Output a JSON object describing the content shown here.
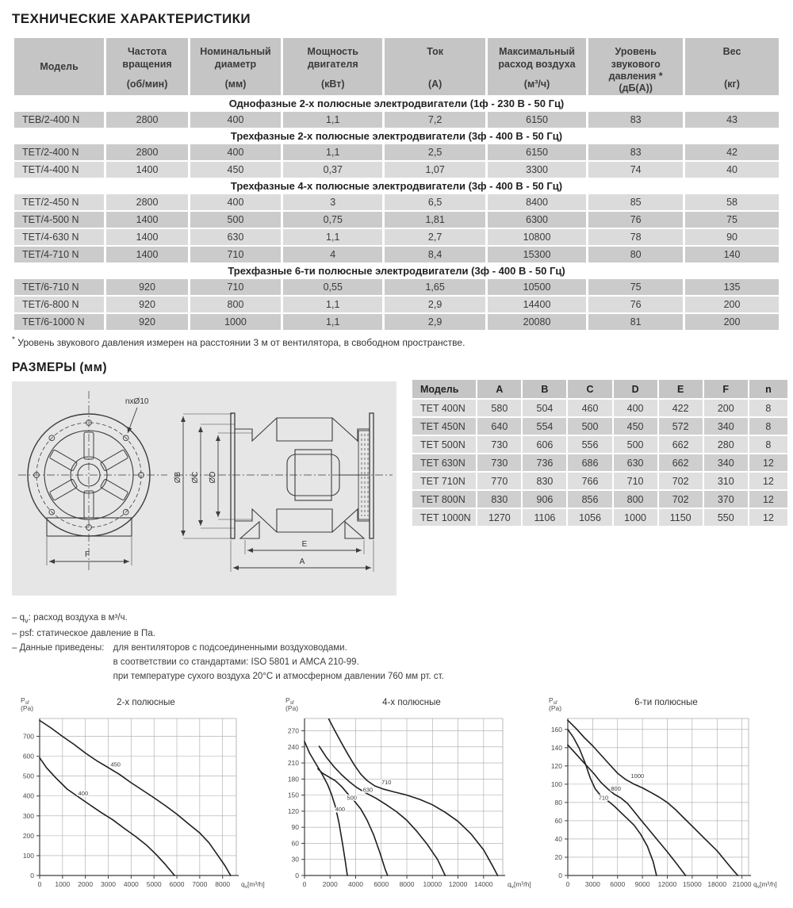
{
  "page_title": "ТЕХНИЧЕСКИЕ ХАРАКТЕРИСТИКИ",
  "colors": {
    "table_header": "#c5c5c5",
    "row_dark": "#cbcbcb",
    "row_light": "#dbdbdb",
    "section_row": "#ffffff",
    "drawing_panel": "#e6e6e6",
    "curve": "#1f1f1f",
    "grid": "#a8a8a8"
  },
  "spec_table": {
    "columns": [
      {
        "title": "Модель",
        "unit": ""
      },
      {
        "title": "Частота вращения",
        "unit": "(об/мин)"
      },
      {
        "title": "Номинальный диаметр",
        "unit": "(мм)"
      },
      {
        "title": "Мощность двигателя",
        "unit": "(кВт)"
      },
      {
        "title": "Ток",
        "unit": "(А)"
      },
      {
        "title": "Максимальный расход воздуха",
        "unit": "(м³/ч)"
      },
      {
        "title": "Уровень звукового давления *",
        "unit": "(дБ(А))"
      },
      {
        "title": "Вес",
        "unit": "(кг)"
      }
    ],
    "sections": [
      {
        "header": "Однофазные 2-х полюсные электродвигатели (1ф - 230 В - 50 Гц)",
        "rows": [
          [
            "TEB/2-400 N",
            "2800",
            "400",
            "1,1",
            "7,2",
            "6150",
            "83",
            "43"
          ]
        ]
      },
      {
        "header": "Трехфазные 2-х полюсные электродвигатели (3ф - 400 В - 50 Гц)",
        "rows": [
          [
            "TET/2-400 N",
            "2800",
            "400",
            "1,1",
            "2,5",
            "6150",
            "83",
            "42"
          ],
          [
            "TET/4-400 N",
            "1400",
            "450",
            "0,37",
            "1,07",
            "3300",
            "74",
            "40"
          ]
        ]
      },
      {
        "header": "Трехфазные 4-х полюсные электродвигатели (3ф - 400 В - 50 Гц)",
        "rows": [
          [
            "TET/2-450 N",
            "2800",
            "400",
            "3",
            "6,5",
            "8400",
            "85",
            "58"
          ],
          [
            "TET/4-500 N",
            "1400",
            "500",
            "0,75",
            "1,81",
            "6300",
            "76",
            "75"
          ],
          [
            "TET/4-630 N",
            "1400",
            "630",
            "1,1",
            "2,7",
            "10800",
            "78",
            "90"
          ],
          [
            "TET/4-710 N",
            "1400",
            "710",
            "4",
            "8,4",
            "15300",
            "80",
            "140"
          ]
        ]
      },
      {
        "header": "Трехфазные 6-ти полюсные электродвигатели (3ф - 400 В - 50 Гц)",
        "rows": [
          [
            "TET/6-710 N",
            "920",
            "710",
            "0,55",
            "1,65",
            "10500",
            "75",
            "135"
          ],
          [
            "TET/6-800 N",
            "920",
            "800",
            "1,1",
            "2,9",
            "14400",
            "76",
            "200"
          ],
          [
            "TET/6-1000 N",
            "920",
            "1000",
            "1,1",
            "2,9",
            "20080",
            "81",
            "200"
          ]
        ]
      }
    ],
    "footnote": "Уровень звукового давления измерен на расстоянии 3 м от вентилятора, в свободном пространстве.",
    "footnote_mark": "*"
  },
  "dimensions": {
    "title": "РАЗМЕРЫ (мм)",
    "drawing_labels": {
      "holes": "nxØ10",
      "B": "ØB",
      "C": "ØC",
      "D": "ØD",
      "E": "E",
      "A": "A",
      "F": "F"
    },
    "table": {
      "columns": [
        "Модель",
        "A",
        "B",
        "C",
        "D",
        "E",
        "F",
        "n"
      ],
      "rows": [
        [
          "TET 400N",
          "580",
          "504",
          "460",
          "400",
          "422",
          "200",
          "8"
        ],
        [
          "TET 450N",
          "640",
          "554",
          "500",
          "450",
          "572",
          "340",
          "8"
        ],
        [
          "TET 500N",
          "730",
          "606",
          "556",
          "500",
          "662",
          "280",
          "8"
        ],
        [
          "TET 630N",
          "730",
          "736",
          "686",
          "630",
          "662",
          "340",
          "12"
        ],
        [
          "TET 710N",
          "770",
          "830",
          "766",
          "710",
          "702",
          "310",
          "12"
        ],
        [
          "TET 800N",
          "830",
          "906",
          "856",
          "800",
          "702",
          "370",
          "12"
        ],
        [
          "TET 1000N",
          "1270",
          "1106",
          "1056",
          "1000",
          "1150",
          "550",
          "12"
        ]
      ]
    }
  },
  "notes": {
    "qv_pre": "– q",
    "qv_sub": "v",
    "qv_post": ": расход воздуха в м³/ч.",
    "psf_line": "– psf: статическое давление в Па.",
    "data_label": "– Данные приведены: ",
    "data_items": [
      "для вентиляторов с подсоединенными воздуховодами.",
      "в соответствии со стандартами: ISO 5801 и AMCA 210-99.",
      "при температуре сухого воздуха 20°С и атмосферном давлении 760 мм рт. ст."
    ]
  },
  "chart_data": [
    {
      "type": "line",
      "title": "2-х полюсные",
      "ylabel_symbol": "P",
      "ylabel_sub": "sf",
      "ylabel_unit": "(Pa)",
      "xlabel_symbol": "q",
      "xlabel_sub": "v",
      "xlabel_unit": "[m³/h]",
      "ylim": [
        0,
        790
      ],
      "ystep": 100,
      "ymax_tick": 700,
      "xlim": [
        0,
        8600
      ],
      "xstep": 1000,
      "xmax_tick": 8000,
      "series": [
        {
          "name": "450",
          "label_at": [
            3320,
            548
          ],
          "points": [
            [
              0,
              780
            ],
            [
              500,
              742
            ],
            [
              1000,
              700
            ],
            [
              1500,
              660
            ],
            [
              2000,
              616
            ],
            [
              2500,
              577
            ],
            [
              3000,
              543
            ],
            [
              3500,
              508
            ],
            [
              4000,
              467
            ],
            [
              4500,
              429
            ],
            [
              5000,
              391
            ],
            [
              5500,
              351
            ],
            [
              6000,
              309
            ],
            [
              6500,
              261
            ],
            [
              7000,
              214
            ],
            [
              7400,
              165
            ],
            [
              7800,
              100
            ],
            [
              8100,
              50
            ],
            [
              8350,
              0
            ]
          ]
        },
        {
          "name": "400",
          "label_at": [
            1900,
            402
          ],
          "points": [
            [
              0,
              592
            ],
            [
              300,
              542
            ],
            [
              700,
              492
            ],
            [
              1200,
              435
            ],
            [
              1700,
              395
            ],
            [
              2200,
              355
            ],
            [
              2700,
              316
            ],
            [
              3200,
              280
            ],
            [
              3700,
              237
            ],
            [
              4200,
              196
            ],
            [
              4700,
              150
            ],
            [
              5100,
              105
            ],
            [
              5500,
              55
            ],
            [
              5900,
              0
            ]
          ]
        }
      ]
    },
    {
      "type": "line",
      "title": "4-х полюсные",
      "ylabel_symbol": "P",
      "ylabel_sub": "sf",
      "ylabel_unit": "(Pa)",
      "xlabel_symbol": "q",
      "xlabel_sub": "v",
      "xlabel_unit": "[m³/h]",
      "ylim": [
        0,
        293
      ],
      "ystep": 30,
      "ymax_tick": 270,
      "xlim": [
        0,
        15500
      ],
      "xstep": 2000,
      "xmax_tick": 14000,
      "series": [
        {
          "name": "400",
          "label_at": [
            2780,
            120
          ],
          "points": [
            [
              0,
              250
            ],
            [
              400,
              228
            ],
            [
              900,
              208
            ],
            [
              1400,
              188
            ],
            [
              1800,
              170
            ],
            [
              2100,
              152
            ],
            [
              2400,
              130
            ],
            [
              2700,
              98
            ],
            [
              3000,
              55
            ],
            [
              3200,
              25
            ],
            [
              3350,
              0
            ]
          ]
        },
        {
          "name": "500",
          "label_at": [
            3700,
            141
          ],
          "points": [
            [
              1050,
              199
            ],
            [
              1400,
              191
            ],
            [
              1900,
              184
            ],
            [
              2400,
              177
            ],
            [
              2900,
              166
            ],
            [
              3400,
              152
            ],
            [
              3900,
              139
            ],
            [
              4400,
              124
            ],
            [
              4900,
              103
            ],
            [
              5400,
              76
            ],
            [
              5900,
              42
            ],
            [
              6300,
              12
            ],
            [
              6500,
              0
            ]
          ]
        },
        {
          "name": "630",
          "label_at": [
            4950,
            156
          ],
          "points": [
            [
              1150,
              241
            ],
            [
              1700,
              221
            ],
            [
              2300,
              203
            ],
            [
              2900,
              188
            ],
            [
              3500,
              175
            ],
            [
              4100,
              164
            ],
            [
              4800,
              154
            ],
            [
              5600,
              144
            ],
            [
              6400,
              132
            ],
            [
              7200,
              119
            ],
            [
              8000,
              103
            ],
            [
              8800,
              82
            ],
            [
              9600,
              58
            ],
            [
              10400,
              30
            ],
            [
              11000,
              0
            ]
          ]
        },
        {
          "name": "710",
          "label_at": [
            6400,
            170
          ],
          "points": [
            [
              1900,
              292
            ],
            [
              2400,
              269
            ],
            [
              2900,
              247
            ],
            [
              3400,
              226
            ],
            [
              3900,
              206
            ],
            [
              4400,
              189
            ],
            [
              4900,
              177
            ],
            [
              5500,
              167
            ],
            [
              6200,
              161
            ],
            [
              7000,
              156
            ],
            [
              8000,
              150
            ],
            [
              9000,
              142
            ],
            [
              10000,
              132
            ],
            [
              11000,
              118
            ],
            [
              12000,
              101
            ],
            [
              13000,
              78
            ],
            [
              14000,
              48
            ],
            [
              14700,
              18
            ],
            [
              15100,
              0
            ]
          ]
        }
      ]
    },
    {
      "type": "line",
      "title": "6-ти полюсные",
      "ylabel_symbol": "P",
      "ylabel_sub": "sf",
      "ylabel_unit": "(Pa)",
      "xlabel_symbol": "q",
      "xlabel_sub": "v",
      "xlabel_unit": "[m³/h]",
      "ylim": [
        0,
        172
      ],
      "ystep": 20,
      "ymax_tick": 160,
      "xlim": [
        0,
        21800
      ],
      "xstep": 3000,
      "xmax_tick": 21000,
      "series": [
        {
          "name": "710",
          "label_at": [
            4300,
            83
          ],
          "points": [
            [
              0,
              160
            ],
            [
              700,
              151
            ],
            [
              1400,
              139
            ],
            [
              2100,
              123
            ],
            [
              2700,
              107
            ],
            [
              3300,
              95
            ],
            [
              4000,
              87
            ],
            [
              4800,
              82
            ],
            [
              5600,
              76
            ],
            [
              6400,
              69
            ],
            [
              7200,
              62
            ],
            [
              8000,
              55
            ],
            [
              8800,
              45
            ],
            [
              9600,
              32
            ],
            [
              10300,
              15
            ],
            [
              10700,
              0
            ]
          ]
        },
        {
          "name": "800",
          "label_at": [
            5800,
            93
          ],
          "points": [
            [
              0,
              143
            ],
            [
              800,
              135
            ],
            [
              1600,
              127
            ],
            [
              2400,
              119
            ],
            [
              3200,
              111
            ],
            [
              4000,
              102
            ],
            [
              4800,
              95
            ],
            [
              5600,
              89
            ],
            [
              6400,
              85
            ],
            [
              7200,
              79
            ],
            [
              8000,
              70
            ],
            [
              8800,
              61
            ],
            [
              9800,
              50
            ],
            [
              10800,
              39
            ],
            [
              12000,
              26
            ],
            [
              13200,
              12
            ],
            [
              14200,
              0
            ]
          ]
        },
        {
          "name": "1000",
          "label_at": [
            8400,
            107
          ],
          "points": [
            [
              0,
              170
            ],
            [
              1000,
              161
            ],
            [
              2000,
              151
            ],
            [
              3000,
              142
            ],
            [
              4000,
              132
            ],
            [
              5000,
              122
            ],
            [
              6000,
              112
            ],
            [
              7000,
              105
            ],
            [
              8000,
              100
            ],
            [
              9000,
              96
            ],
            [
              10000,
              91
            ],
            [
              11000,
              86
            ],
            [
              12000,
              80
            ],
            [
              13000,
              72
            ],
            [
              14000,
              63
            ],
            [
              15000,
              54
            ],
            [
              16000,
              45
            ],
            [
              17000,
              36
            ],
            [
              18000,
              27
            ],
            [
              19000,
              16
            ],
            [
              20000,
              5
            ],
            [
              20500,
              0
            ]
          ]
        }
      ]
    }
  ]
}
